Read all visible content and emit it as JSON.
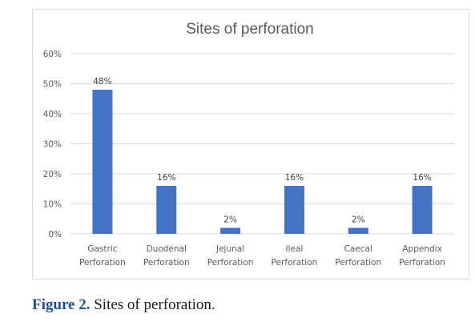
{
  "chart_data": {
    "type": "bar",
    "title": "Sites of perforation",
    "categories": [
      [
        "Gastric",
        "Perforation"
      ],
      [
        "Duodenal",
        "Perforation"
      ],
      [
        "Jejunal",
        "Perforation"
      ],
      [
        "Ileal",
        "Perforation"
      ],
      [
        "Caecal",
        "Perforation"
      ],
      [
        "Appendix",
        "Perforation"
      ]
    ],
    "values": [
      48,
      16,
      2,
      16,
      2,
      16
    ],
    "value_labels": [
      "48%",
      "16%",
      "2%",
      "16%",
      "2%",
      "16%"
    ],
    "y_ticks": [
      "0%",
      "10%",
      "20%",
      "30%",
      "40%",
      "50%",
      "60%"
    ],
    "ylim": [
      0,
      60
    ],
    "bar_color": "#4472c4",
    "grid": true,
    "legend": "none"
  },
  "caption": {
    "label": "Figure 2.",
    "text": " Sites of perforation."
  }
}
